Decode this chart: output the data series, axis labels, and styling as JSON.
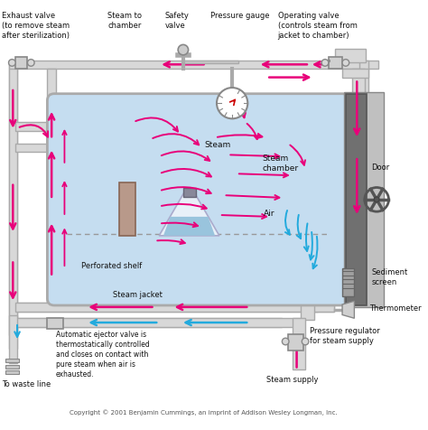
{
  "bg_color": "#ffffff",
  "chamber_color": "#c5ddf0",
  "pipe_color": "#d8d8d8",
  "door_color": "#808080",
  "pink": "#e8007a",
  "cyan": "#22aadd",
  "text_color": "#222222",
  "labels": {
    "exhaust": "Exhaust valve\n(to remove steam\nafter sterilization)",
    "steam_to_chamber": "Steam to\nchamber",
    "safety_valve": "Safety\nvalve",
    "pressure_gauge": "Pressure gauge",
    "operating_valve": "Operating valve\n(controls steam from\njacket to chamber)",
    "steam_label": "Steam",
    "steam_chamber": "Steam\nchamber",
    "air_label": "Air",
    "perforated_shelf": "Perforated shelf",
    "door_label": "Door",
    "sediment_screen": "Sediment\nscreen",
    "thermometer": "Thermometer",
    "steam_jacket": "Steam jacket",
    "ejector_valve": "Automatic ejector valve is\nthermostatically controlled\nand closes on contact with\npure steam when air is\nexhausted.",
    "pressure_regulator": "Pressure regulator\nfor steam supply",
    "steam_supply": "Steam supply",
    "waste_line": "To waste line",
    "copyright": "Copyright © 2001 Benjamin Cummings, an imprint of Addison Wesley Longman, Inc."
  },
  "figsize": [
    4.74,
    4.76
  ],
  "dpi": 100
}
